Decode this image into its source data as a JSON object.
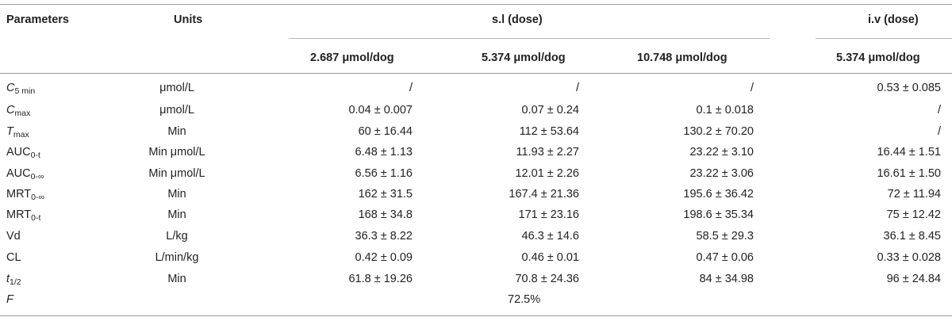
{
  "table": {
    "headers": {
      "parameters": "Parameters",
      "units": "Units",
      "sl_group": "s.l (dose)",
      "iv_group": "i.v (dose)",
      "doses": [
        "2.687 μmol/dog",
        "5.374 μmol/dog",
        "10.748 μmol/dog",
        "5.374 μmol/dog"
      ]
    },
    "rows": [
      {
        "param_main": "C",
        "param_sub": "5 min",
        "italic": true,
        "units": "μmol/L",
        "v1": "/",
        "v2": "/",
        "v3": "/",
        "v4": "0.53 ± 0.085"
      },
      {
        "param_main": "C",
        "param_sub": "max",
        "italic": true,
        "units": "μmol/L",
        "v1": "0.04 ± 0.007",
        "v2": "0.07 ± 0.24",
        "v3": "0.1 ± 0.018",
        "v4": "/"
      },
      {
        "param_main": "T",
        "param_sub": "max",
        "italic": true,
        "units": "Min",
        "v1": "60 ± 16.44",
        "v2": "112 ± 53.64",
        "v3": "130.2 ± 70.20",
        "v4": "/"
      },
      {
        "param_main": "AUC",
        "param_sub": "0-t",
        "italic": false,
        "units": "Min μmol/L",
        "v1": "6.48 ± 1.13",
        "v2": "11.93 ± 2.27",
        "v3": "23.22 ± 3.10",
        "v4": "16.44 ± 1.51"
      },
      {
        "param_main": "AUC",
        "param_sub": "0-∞",
        "italic": false,
        "units": "Min μmol/L",
        "v1": "6.56 ± 1.16",
        "v2": "12.01 ± 2.26",
        "v3": "23.22 ± 3.06",
        "v4": "16.61 ± 1.50"
      },
      {
        "param_main": "MRT",
        "param_sub": "0-∞",
        "italic": false,
        "units": "Min",
        "v1": "162 ± 31.5",
        "v2": "167.4 ± 21.36",
        "v3": "195.6 ± 36.42",
        "v4": "72 ± 11.94"
      },
      {
        "param_main": "MRT",
        "param_sub": "0-t",
        "italic": false,
        "units": "Min",
        "v1": "168 ± 34.8",
        "v2": "171 ± 23.16",
        "v3": "198.6 ± 35.34",
        "v4": "75 ± 12.42"
      },
      {
        "param_main": "Vd",
        "param_sub": "",
        "italic": false,
        "units": "L/kg",
        "v1": "36.3 ± 8.22",
        "v2": "46.3 ± 14.6",
        "v3": "58.5 ± 29.3",
        "v4": "36.1 ± 8.45"
      },
      {
        "param_main": "CL",
        "param_sub": "",
        "italic": false,
        "units": "L/min/kg",
        "v1": "0.42 ± 0.09",
        "v2": "0.46 ± 0.01",
        "v3": "0.47 ± 0.06",
        "v4": "0.33 ± 0.028"
      },
      {
        "param_main": "t",
        "param_sub": "1/2",
        "italic": true,
        "units": "Min",
        "v1": "61.8 ± 19.26",
        "v2": "70.8 ± 24.36",
        "v3": "84 ± 34.98",
        "v4": "96 ± 24.84"
      }
    ],
    "f_row": {
      "param_main": "F",
      "value": "72.5%"
    }
  }
}
